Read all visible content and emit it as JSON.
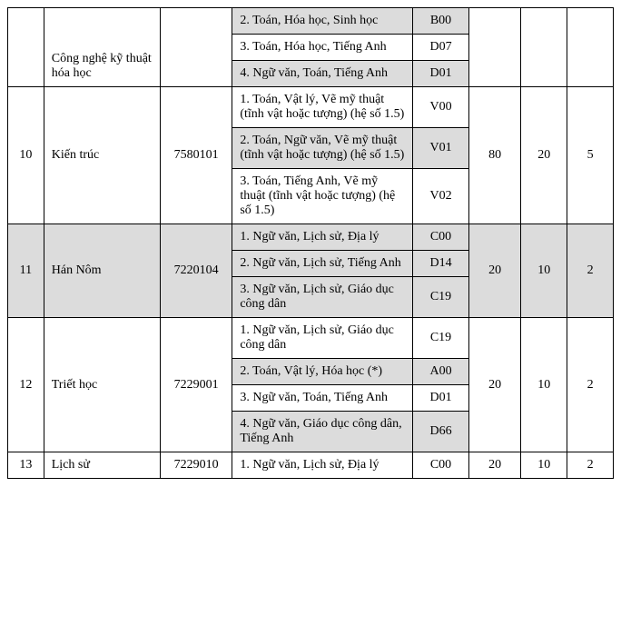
{
  "colors": {
    "shade": "#dcdcdc",
    "border": "#000000",
    "bg": "#ffffff",
    "text": "#000000"
  },
  "partial": {
    "major": "Công nghệ kỹ thuật hóa học",
    "combo2": "2. Toán, Hóa học, Sinh học",
    "code2": "B00",
    "combo3": "3. Toán, Hóa học, Tiếng Anh",
    "code3": "D07",
    "combo4": "4. Ngữ văn, Toán, Tiếng Anh",
    "code4": "D01"
  },
  "row10": {
    "no": "10",
    "major": "Kiến trúc",
    "mcode": "7580101",
    "combo1": "1. Toán, Vật lý, Vẽ mỹ thuật (tĩnh vật hoặc tượng) (hệ số 1.5)",
    "code1": "V00",
    "combo2": "2. Toán, Ngữ văn, Vẽ mỹ thuật (tĩnh vật hoặc tượng) (hệ số 1.5)",
    "code2": "V01",
    "combo3": "3. Toán, Tiếng Anh, Vẽ mỹ thuật (tĩnh vật hoặc tượng) (hệ số 1.5)",
    "code3": "V02",
    "q1": "80",
    "q2": "20",
    "q3": "5"
  },
  "row11": {
    "no": "11",
    "major": "Hán Nôm",
    "mcode": "7220104",
    "combo1": "1. Ngữ văn, Lịch sử, Địa lý",
    "code1": "C00",
    "combo2": "2. Ngữ văn, Lịch sử, Tiếng Anh",
    "code2": "D14",
    "combo3": "3. Ngữ văn, Lịch sử, Giáo dục công dân",
    "code3": "C19",
    "q1": "20",
    "q2": "10",
    "q3": "2"
  },
  "row12": {
    "no": "12",
    "major": "Triết học",
    "mcode": "7229001",
    "combo1": "1. Ngữ văn, Lịch sử, Giáo dục công dân",
    "code1": "C19",
    "combo2": "2. Toán, Vật lý, Hóa học (*)",
    "code2": "A00",
    "combo3": "3. Ngữ văn, Toán, Tiếng Anh",
    "code3": "D01",
    "combo4": "4. Ngữ văn, Giáo dục công dân, Tiếng Anh",
    "code4": "D66",
    "q1": "20",
    "q2": "10",
    "q3": "2"
  },
  "row13": {
    "no": "13",
    "major": "Lịch sử",
    "mcode": "7229010",
    "combo1": "1. Ngữ văn, Lịch sử, Địa lý",
    "code1": "C00",
    "q1": "20",
    "q2": "10",
    "q3": "2"
  }
}
